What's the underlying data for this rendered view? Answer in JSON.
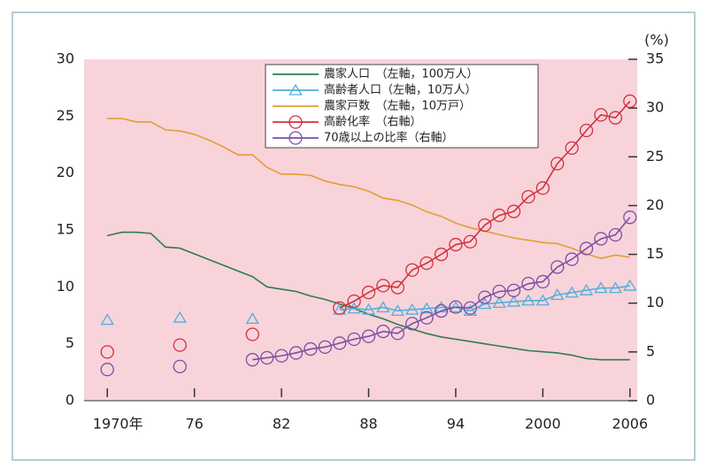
{
  "chart_data": {
    "type": "line",
    "y2_label": "(%)",
    "x": [
      1970,
      1971,
      1972,
      1973,
      1974,
      1975,
      1976,
      1977,
      1978,
      1979,
      1980,
      1981,
      1982,
      1983,
      1984,
      1985,
      1986,
      1987,
      1988,
      1989,
      1990,
      1991,
      1992,
      1993,
      1994,
      1995,
      1996,
      1997,
      1998,
      1999,
      2000,
      2001,
      2002,
      2003,
      2004,
      2005,
      2006
    ],
    "xlim": [
      1968.4,
      2006.5
    ],
    "xticks": [
      {
        "value": 1970,
        "label": "1970年"
      },
      {
        "value": 1976,
        "label": "76"
      },
      {
        "value": 1982,
        "label": "82"
      },
      {
        "value": 1988,
        "label": "88"
      },
      {
        "value": 1994,
        "label": "94"
      },
      2000,
      2006
    ],
    "ylim": [
      0,
      30
    ],
    "yticks": [
      0,
      5,
      10,
      15,
      20,
      25,
      30
    ],
    "y2lim": [
      0,
      35
    ],
    "y2ticks": [
      0,
      5,
      10,
      15,
      20,
      25,
      30,
      35
    ],
    "series": [
      {
        "name": "農家人口　（左軸，100万人）",
        "color": "#2e7d4f",
        "marker": "none",
        "values": [
          14.5,
          14.8,
          14.8,
          14.7,
          13.5,
          13.4,
          12.9,
          12.4,
          11.9,
          11.4,
          10.9,
          10.0,
          9.8,
          9.6,
          9.2,
          8.9,
          8.5,
          8.1,
          7.6,
          7.2,
          6.7,
          6.3,
          5.9,
          5.6,
          5.4,
          5.2,
          5.0,
          4.8,
          4.6,
          4.4,
          4.3,
          4.2,
          4.0,
          3.7,
          3.6,
          3.6,
          3.6
        ]
      },
      {
        "name": "高齢者人口（左軸，10万人）",
        "color": "#4fb0dc",
        "marker": "triangle",
        "values": [
          7.1,
          null,
          null,
          null,
          null,
          7.3,
          null,
          null,
          null,
          null,
          7.2,
          null,
          null,
          null,
          null,
          null,
          8.0,
          8.1,
          8.0,
          8.2,
          7.9,
          8.0,
          8.1,
          8.2,
          8.2,
          7.9,
          8.5,
          8.6,
          8.7,
          8.8,
          8.8,
          9.3,
          9.5,
          9.7,
          9.9,
          9.9,
          10.1
        ]
      },
      {
        "name": "農家戸数　（左軸，10万戸）",
        "color": "#e0a030",
        "marker": "none",
        "values": [
          24.8,
          24.8,
          24.5,
          24.5,
          23.8,
          23.7,
          23.4,
          22.9,
          22.3,
          21.6,
          21.6,
          20.5,
          19.9,
          19.9,
          19.8,
          19.3,
          19.0,
          18.8,
          18.4,
          17.8,
          17.6,
          17.2,
          16.6,
          16.2,
          15.6,
          15.2,
          14.9,
          14.6,
          14.3,
          14.1,
          13.9,
          13.8,
          13.4,
          12.9,
          12.5,
          12.8,
          12.6
        ]
      },
      {
        "name": "高齢化率　（右軸）",
        "color": "#d2303c",
        "marker": "circle",
        "axis": "y2",
        "values": [
          5.0,
          null,
          null,
          null,
          null,
          5.7,
          null,
          null,
          null,
          null,
          6.8,
          null,
          null,
          null,
          null,
          null,
          9.5,
          10.2,
          11.1,
          11.8,
          11.6,
          13.4,
          14.1,
          15.0,
          16.0,
          16.3,
          18.0,
          19.0,
          19.4,
          20.9,
          21.8,
          24.3,
          25.9,
          27.7,
          29.3,
          29.0,
          30.7
        ]
      },
      {
        "name": "70歳以上の比率（右軸）",
        "color": "#7a4fa6",
        "marker": "circle",
        "axis": "y2",
        "values": [
          3.2,
          null,
          null,
          null,
          null,
          3.5,
          null,
          null,
          null,
          null,
          4.2,
          4.4,
          4.6,
          4.9,
          5.3,
          5.5,
          5.9,
          6.3,
          6.6,
          7.1,
          6.9,
          7.9,
          8.5,
          9.2,
          9.6,
          9.5,
          10.6,
          11.2,
          11.3,
          12.0,
          12.2,
          13.7,
          14.5,
          15.6,
          16.6,
          17.0,
          18.8
        ]
      }
    ],
    "background": "#f8d3da"
  }
}
